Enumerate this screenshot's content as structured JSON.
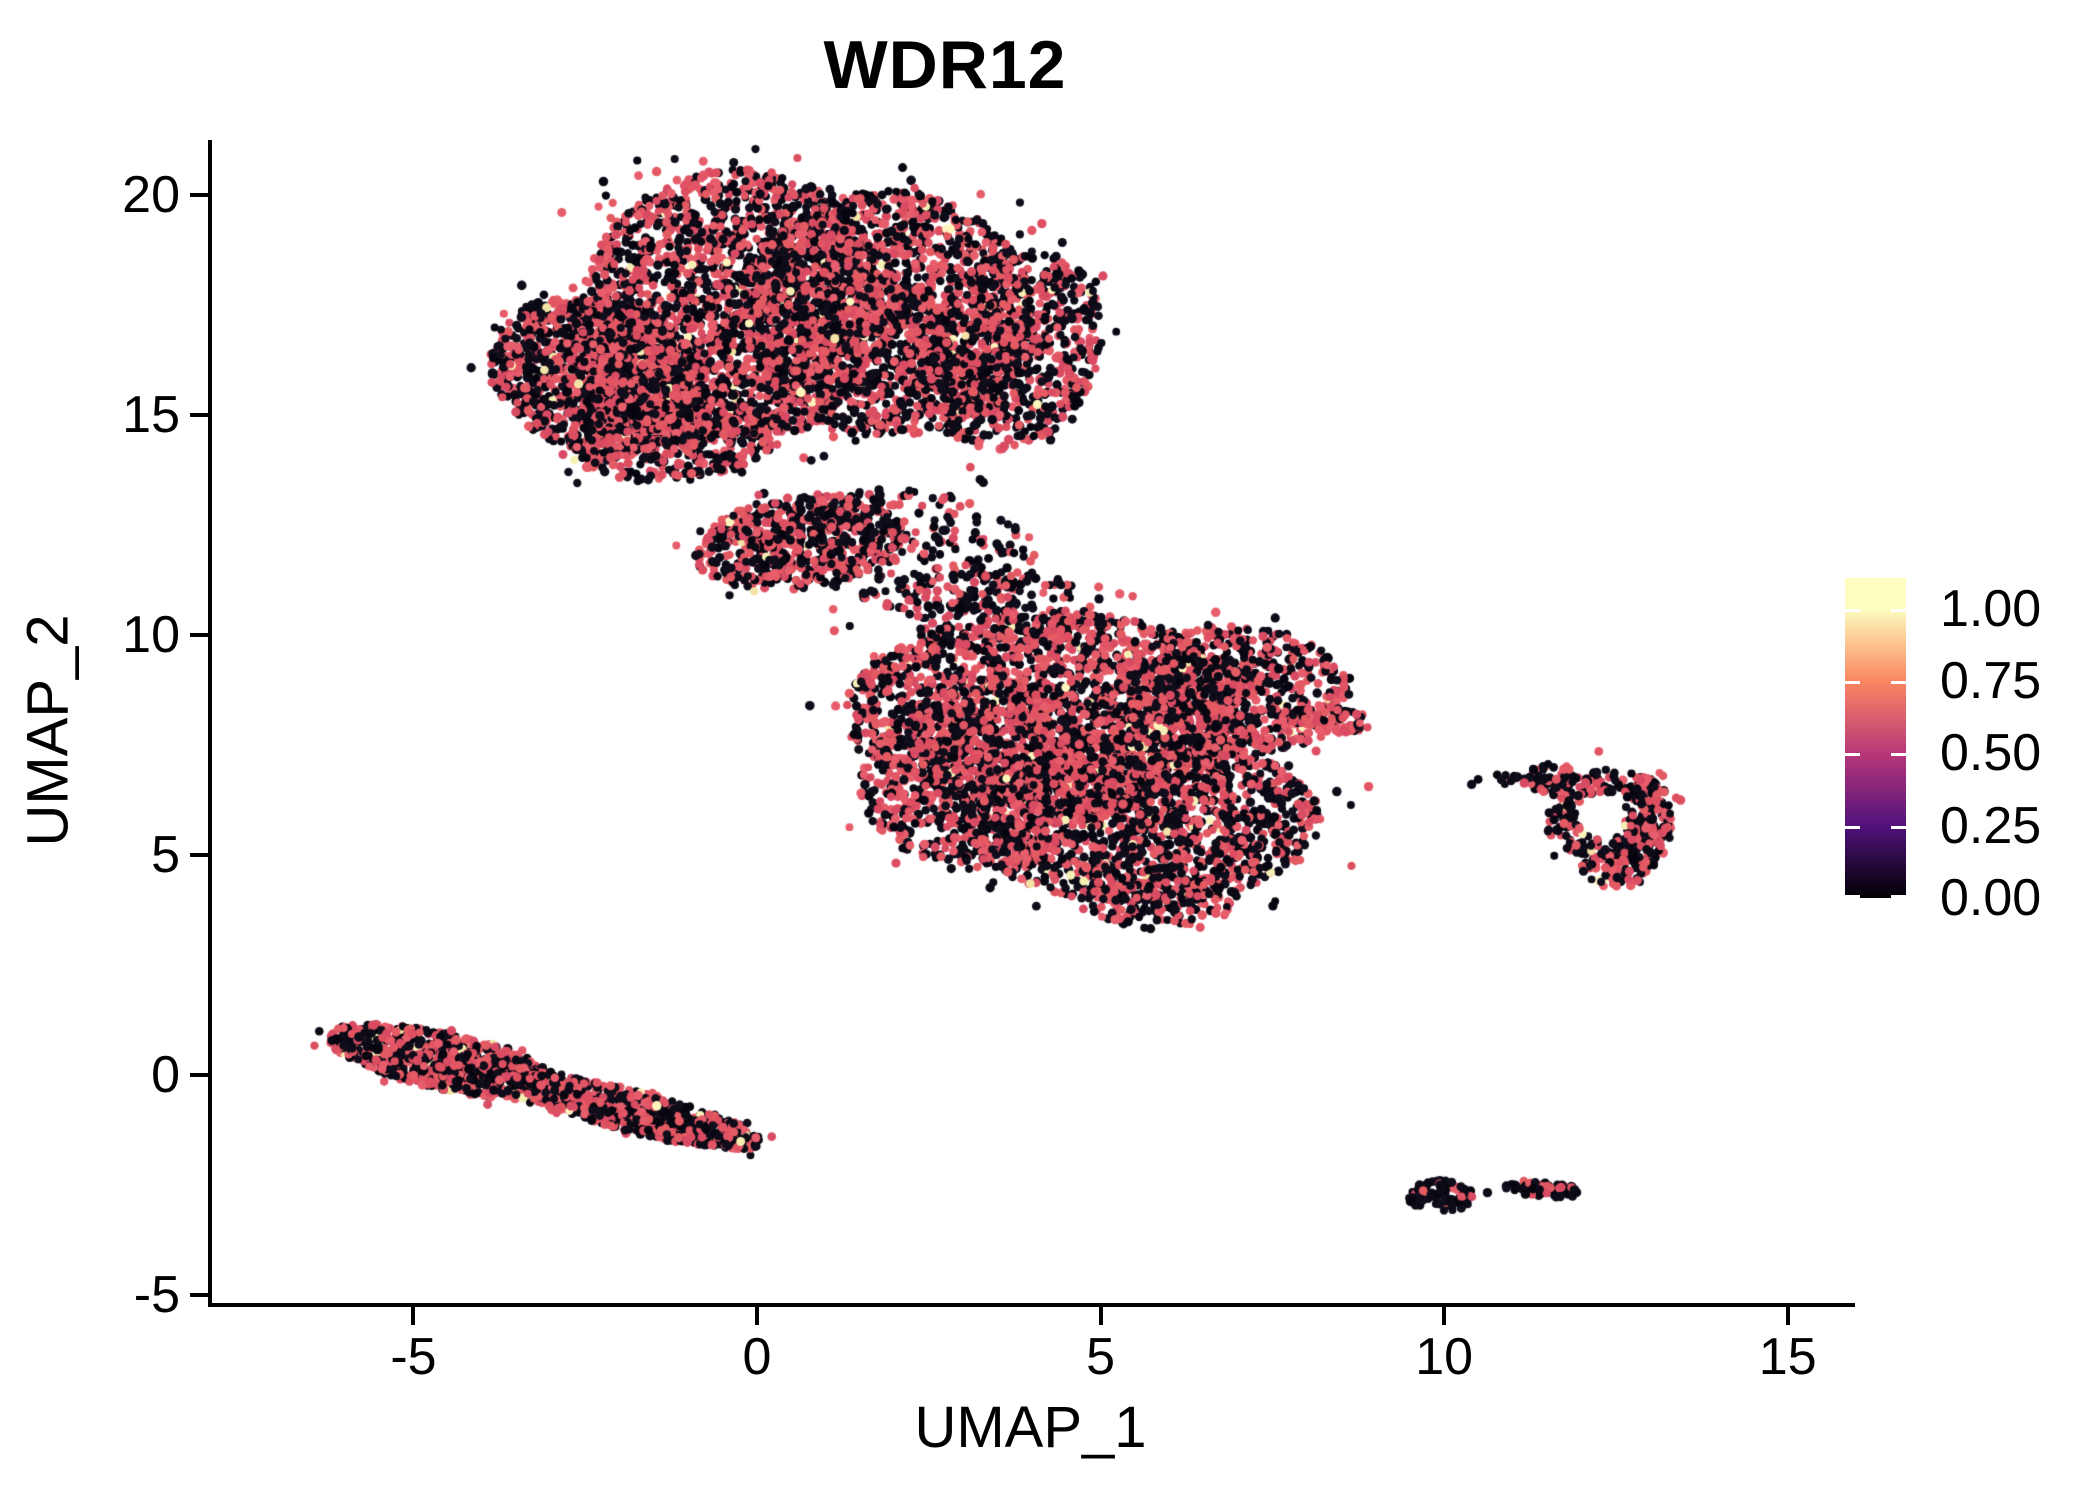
{
  "chart_data": {
    "type": "scatter",
    "title": "WDR12",
    "xlabel": "UMAP_1",
    "ylabel": "UMAP_2",
    "x_ticks": [
      -5,
      0,
      5,
      10,
      15
    ],
    "y_ticks": [
      20,
      15,
      10,
      5,
      0,
      -5
    ],
    "x_range": [
      -7.99,
      15.95
    ],
    "y_range": [
      -5.28,
      21.25
    ],
    "grid": false,
    "legend_position": "right",
    "point_radius_px": 4.2,
    "colorscale": {
      "name": "magma",
      "low_value_color": "#0b0a15",
      "mid_value_color": "#e25565",
      "high_value_color": "#f6efb4"
    },
    "palettes": {
      "black": [
        "#0b0a15",
        "#110e1c",
        "#070610",
        "#0e0c18"
      ],
      "pink": [
        "#e25565",
        "#dd4f60",
        "#e75d6b",
        "#d94b63",
        "#e45a62"
      ],
      "cream": [
        "#f6efb4",
        "#fdf5bc",
        "#f3e3a6"
      ]
    },
    "legend": {
      "tick_labels": [
        "1.00",
        "0.75",
        "0.50",
        "0.25",
        "0.00"
      ],
      "tick_values": [
        1.0,
        0.75,
        0.5,
        0.25,
        0.0
      ],
      "bar_value_top": 1.107,
      "gradient": [
        {
          "color": "#fcfdbf",
          "pos": 0
        },
        {
          "color": "#fcfdbf",
          "pos": 9.5
        },
        {
          "color": "#fb8861",
          "pos": 32
        },
        {
          "color": "#b73779",
          "pos": 55
        },
        {
          "color": "#51127c",
          "pos": 77.5
        },
        {
          "color": "#000004",
          "pos": 100
        }
      ]
    },
    "seed": 1337,
    "clusters": [
      {
        "id": "top-left-lobe",
        "shape": "ellipse",
        "cx": -2.3,
        "cy": 15.9,
        "rx": 1.5,
        "ry": 1.9,
        "rot": 25,
        "n": 1350,
        "mix": {
          "black": 0.53,
          "pink": 0.455,
          "cream": 0.015
        }
      },
      {
        "id": "top-center-lobe",
        "shape": "ellipse",
        "cx": -0.3,
        "cy": 17.5,
        "rx": 2.2,
        "ry": 3.1,
        "rot": 0,
        "n": 2100,
        "mix": {
          "black": 0.5,
          "pink": 0.485,
          "cream": 0.015
        }
      },
      {
        "id": "top-right-lobe",
        "shape": "ellipse",
        "cx": 1.9,
        "cy": 17.3,
        "rx": 2.1,
        "ry": 2.8,
        "rot": 0,
        "n": 1750,
        "mix": {
          "black": 0.49,
          "pink": 0.495,
          "cream": 0.015
        }
      },
      {
        "id": "top-far-right-lobe",
        "shape": "ellipse",
        "cx": 3.7,
        "cy": 16.5,
        "rx": 1.3,
        "ry": 2.3,
        "rot": -8,
        "n": 800,
        "mix": {
          "black": 0.55,
          "pink": 0.44,
          "cream": 0.01
        }
      },
      {
        "id": "top-bottom-fill",
        "shape": "ellipse",
        "cx": -1.2,
        "cy": 14.5,
        "rx": 1.6,
        "ry": 1.0,
        "rot": 10,
        "n": 480,
        "mix": {
          "black": 0.54,
          "pink": 0.45,
          "cream": 0.01
        }
      },
      {
        "id": "top-appendage",
        "shape": "ellipse",
        "cx": 0.6,
        "cy": 12.1,
        "rx": 1.55,
        "ry": 1.05,
        "rot": 15,
        "n": 600,
        "mix": {
          "black": 0.52,
          "pink": 0.47,
          "cream": 0.01
        }
      },
      {
        "id": "bridge-upper",
        "shape": "ellipse",
        "cx": 2.3,
        "cy": 11.9,
        "rx": 1.9,
        "ry": 1.4,
        "rot": -20,
        "n": 250,
        "mix": {
          "black": 0.62,
          "pink": 0.38,
          "cream": 0
        }
      },
      {
        "id": "bridge-lower",
        "shape": "ellipse",
        "cx": 3.4,
        "cy": 10.6,
        "rx": 1.4,
        "ry": 1.0,
        "rot": 0,
        "n": 150,
        "mix": {
          "black": 0.65,
          "pink": 0.35,
          "cream": 0
        }
      },
      {
        "id": "mid-upper-lobe",
        "shape": "ellipse",
        "cx": 4.3,
        "cy": 8.3,
        "rx": 3.0,
        "ry": 2.2,
        "rot": 0,
        "n": 2100,
        "mix": {
          "black": 0.48,
          "pink": 0.505,
          "cream": 0.015
        }
      },
      {
        "id": "mid-lower-lobe",
        "shape": "ellipse",
        "cx": 5.6,
        "cy": 5.8,
        "rx": 2.6,
        "ry": 1.9,
        "rot": 0,
        "n": 1600,
        "mix": {
          "black": 0.56,
          "pink": 0.42,
          "cream": 0.02
        }
      },
      {
        "id": "mid-left-lobe",
        "shape": "ellipse",
        "cx": 3.2,
        "cy": 6.6,
        "rx": 1.7,
        "ry": 1.9,
        "rot": 0,
        "n": 800,
        "mix": {
          "black": 0.5,
          "pink": 0.49,
          "cream": 0.01
        }
      },
      {
        "id": "mid-right-lobe",
        "shape": "ellipse",
        "cx": 6.9,
        "cy": 8.7,
        "rx": 1.7,
        "ry": 1.5,
        "rot": 0,
        "n": 700,
        "mix": {
          "black": 0.53,
          "pink": 0.455,
          "cream": 0.015
        }
      },
      {
        "id": "mid-right-tip",
        "shape": "ellipse",
        "cx": 8.3,
        "cy": 8.1,
        "rx": 0.65,
        "ry": 0.3,
        "rot": -10,
        "n": 90,
        "mix": {
          "black": 0.35,
          "pink": 0.63,
          "cream": 0.02
        }
      },
      {
        "id": "mid-bottom-tail",
        "shape": "ellipse",
        "cx": 5.9,
        "cy": 4.0,
        "rx": 1.1,
        "ry": 0.7,
        "rot": 0,
        "n": 150,
        "mix": {
          "black": 0.55,
          "pink": 0.45,
          "cream": 0
        }
      },
      {
        "id": "ring-cluster",
        "shape": "ring",
        "cx": 12.4,
        "cy": 5.9,
        "rx": 0.95,
        "ry": 1.05,
        "inner": 0.5,
        "rot": 0,
        "n": 240,
        "mix": {
          "black": 0.58,
          "pink": 0.4,
          "cream": 0.02
        }
      },
      {
        "id": "ring-right-edge",
        "shape": "ellipse",
        "cx": 12.95,
        "cy": 5.7,
        "rx": 0.35,
        "ry": 1.1,
        "rot": 0,
        "n": 130,
        "mix": {
          "black": 0.5,
          "pink": 0.47,
          "cream": 0.03
        }
      },
      {
        "id": "ring-bottom",
        "shape": "ellipse",
        "cx": 12.5,
        "cy": 4.7,
        "rx": 0.5,
        "ry": 0.45,
        "rot": 0,
        "n": 80,
        "mix": {
          "black": 0.52,
          "pink": 0.45,
          "cream": 0.03
        }
      },
      {
        "id": "ring-topleft-blob",
        "shape": "ellipse",
        "cx": 11.55,
        "cy": 6.75,
        "rx": 0.38,
        "ry": 0.33,
        "rot": 0,
        "n": 70,
        "mix": {
          "black": 0.76,
          "pink": 0.24,
          "cream": 0
        }
      },
      {
        "id": "ring-left-tail",
        "shape": "ellipse",
        "cx": 10.85,
        "cy": 6.7,
        "rx": 0.4,
        "ry": 0.14,
        "rot": -5,
        "n": 12,
        "mix": {
          "black": 0.8,
          "pink": 0.2,
          "cream": 0
        }
      },
      {
        "id": "strip-left",
        "shape": "ellipse",
        "cx": -4.55,
        "cy": 0.3,
        "rx": 1.8,
        "ry": 0.62,
        "rot": -20,
        "n": 900,
        "mix": {
          "black": 0.49,
          "pink": 0.495,
          "cream": 0.015
        }
      },
      {
        "id": "strip-right",
        "shape": "ellipse",
        "cx": -1.75,
        "cy": -0.85,
        "rx": 1.95,
        "ry": 0.45,
        "rot": -22,
        "n": 800,
        "mix": {
          "black": 0.51,
          "pink": 0.475,
          "cream": 0.015
        }
      },
      {
        "id": "bottom-blob-left",
        "shape": "ellipse",
        "cx": 9.95,
        "cy": -2.75,
        "rx": 0.48,
        "ry": 0.36,
        "rot": 0,
        "n": 90,
        "mix": {
          "black": 0.82,
          "pink": 0.18,
          "cream": 0
        }
      },
      {
        "id": "bottom-blob-right",
        "shape": "ellipse",
        "cx": 11.45,
        "cy": -2.6,
        "rx": 0.58,
        "ry": 0.17,
        "rot": -8,
        "n": 75,
        "mix": {
          "black": 0.72,
          "pink": 0.28,
          "cream": 0
        }
      }
    ],
    "outliers": [
      {
        "x": 6.67,
        "y": 3.7,
        "c": "pink"
      },
      {
        "x": 6.45,
        "y": 3.35,
        "c": "pink"
      },
      {
        "x": 10.63,
        "y": -2.68,
        "c": "black"
      },
      {
        "x": 8.9,
        "y": 6.55,
        "c": "pink"
      },
      {
        "x": 10.4,
        "y": 6.6,
        "c": "black"
      },
      {
        "x": 1.35,
        "y": 10.2,
        "c": "black"
      },
      {
        "x": -0.4,
        "y": 10.9,
        "c": "black"
      },
      {
        "x": 12.25,
        "y": 7.35,
        "c": "pink"
      }
    ]
  }
}
